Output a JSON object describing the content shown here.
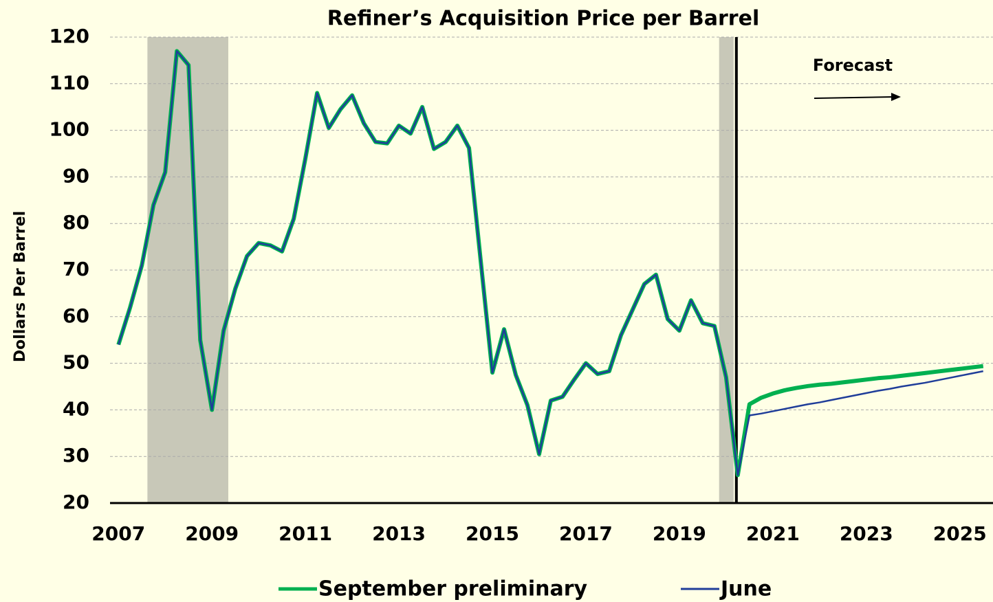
{
  "chart_data": {
    "type": "line",
    "title": "Refiner’s Acquisition Price per Barrel",
    "y_label": "Dollars Per Barrel",
    "annotation": "Forecast",
    "x": [
      2007,
      2007.25,
      2007.5,
      2007.75,
      2008,
      2008.25,
      2008.5,
      2008.75,
      2009,
      2009.25,
      2009.5,
      2009.75,
      2010,
      2010.25,
      2010.5,
      2010.75,
      2011,
      2011.25,
      2011.5,
      2011.75,
      2012,
      2012.25,
      2012.5,
      2012.75,
      2013,
      2013.25,
      2013.5,
      2013.75,
      2014,
      2014.25,
      2014.5,
      2014.75,
      2015,
      2015.25,
      2015.5,
      2015.75,
      2016,
      2016.25,
      2016.5,
      2016.75,
      2017,
      2017.25,
      2017.5,
      2017.75,
      2018,
      2018.25,
      2018.5,
      2018.75,
      2019,
      2019.25,
      2019.5,
      2019.75,
      2020,
      2020.25,
      2020.5,
      2020.75,
      2021,
      2021.25,
      2021.5,
      2021.75,
      2022,
      2022.25,
      2022.5,
      2022.75,
      2023,
      2023.25,
      2023.5,
      2023.75,
      2024,
      2024.25,
      2024.5,
      2024.75,
      2025,
      2025.25,
      2025.5
    ],
    "series": [
      {
        "name": "September preliminary",
        "color": "#00b050",
        "width": 6,
        "values": [
          54,
          62,
          71,
          84,
          91,
          117,
          114,
          55,
          40,
          57,
          66,
          73,
          75.8,
          75.3,
          74,
          81,
          94,
          108,
          100.5,
          104.5,
          107.5,
          101.5,
          97.5,
          97.2,
          101,
          99.3,
          105,
          96,
          97.5,
          101,
          96.2,
          72,
          48,
          57.3,
          47.5,
          41,
          30.5,
          42,
          42.8,
          46.5,
          50,
          47.7,
          48.3,
          56,
          61.5,
          67,
          69,
          59.5,
          57,
          63.5,
          58.6,
          58,
          47,
          26,
          41.2,
          42.6,
          43.5,
          44.2,
          44.7,
          45.1,
          45.4,
          45.6,
          45.9,
          46.2,
          46.5,
          46.8,
          47,
          47.3,
          47.6,
          47.9,
          48.2,
          48.5,
          48.8,
          49.1,
          49.4
        ]
      },
      {
        "name": "June",
        "color": "#1f3d99",
        "width": 2.5,
        "values": [
          54,
          62,
          71,
          84,
          91,
          117,
          114,
          55,
          40,
          57,
          66,
          73,
          75.8,
          75.3,
          74,
          81,
          94,
          108,
          100.5,
          104.5,
          107.5,
          101.5,
          97.5,
          97.2,
          101,
          99.3,
          105,
          96,
          97.5,
          101,
          96.2,
          72,
          48,
          57.3,
          47.5,
          41,
          30.5,
          42,
          42.8,
          46.5,
          50,
          47.7,
          48.3,
          56,
          61.5,
          67,
          69,
          59.5,
          57,
          63.5,
          58.6,
          58,
          47,
          26,
          38.8,
          39.2,
          39.7,
          40.2,
          40.7,
          41.2,
          41.6,
          42.1,
          42.6,
          43.1,
          43.6,
          44.1,
          44.5,
          45,
          45.4,
          45.8,
          46.3,
          46.8,
          47.3,
          47.8,
          48.3
        ]
      }
    ],
    "shaded_regions": [
      [
        2007.62,
        2009.35
      ],
      [
        2019.85,
        2020.16
      ]
    ],
    "shade_color": "#c8c8b8",
    "forecast_start": 2020.22,
    "xlim": [
      2006.82,
      2025.71
    ],
    "xticks": [
      2007,
      2009,
      2011,
      2013,
      2015,
      2017,
      2019,
      2021,
      2023,
      2025
    ],
    "ylim": [
      20,
      120
    ],
    "yticks": [
      20,
      30,
      40,
      50,
      60,
      70,
      80,
      90,
      100,
      110,
      120
    ],
    "grid": true,
    "legend": "bottom"
  }
}
